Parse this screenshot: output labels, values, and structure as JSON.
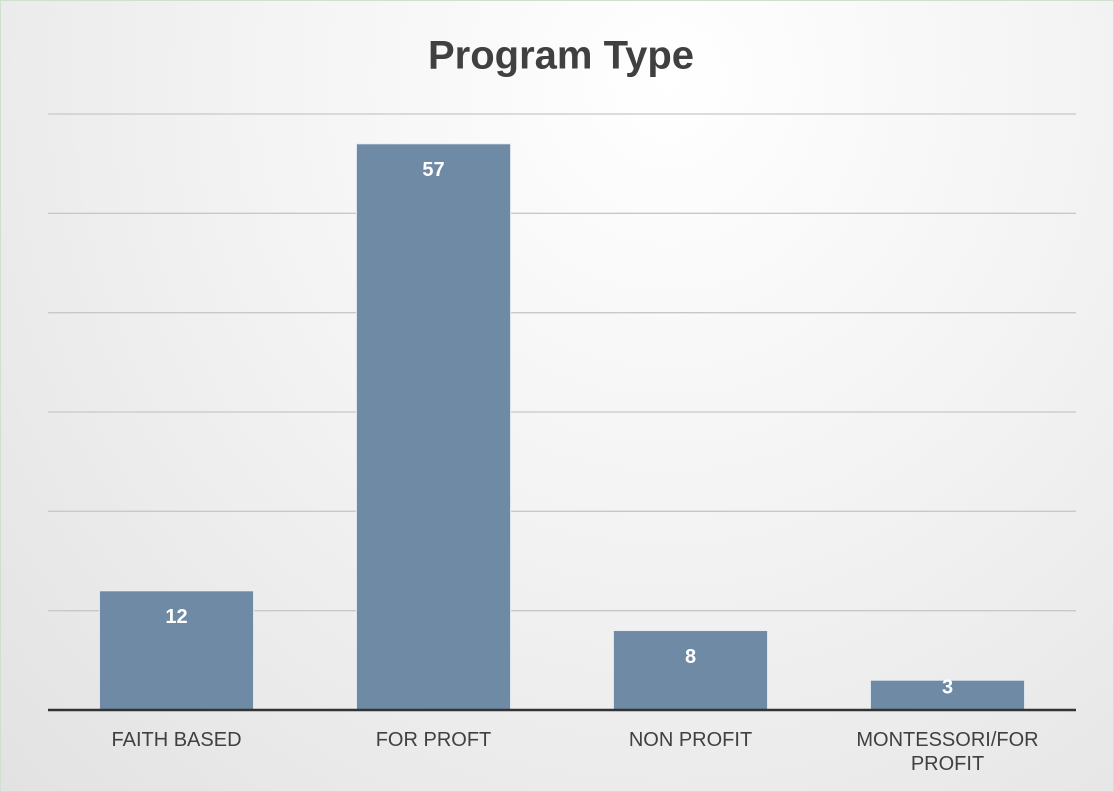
{
  "chart_data": {
    "type": "bar",
    "title": "Program Type",
    "categories": [
      "FAITH BASED",
      "FOR PROFT",
      "NON PROFIT",
      "MONTESSORI/FOR PROFIT"
    ],
    "values": [
      12,
      57,
      8,
      3
    ],
    "color": "#6f8aa4",
    "ylim": [
      0,
      60
    ],
    "yticks": [
      0,
      10,
      20,
      30,
      40,
      50,
      60
    ],
    "grid": true
  }
}
